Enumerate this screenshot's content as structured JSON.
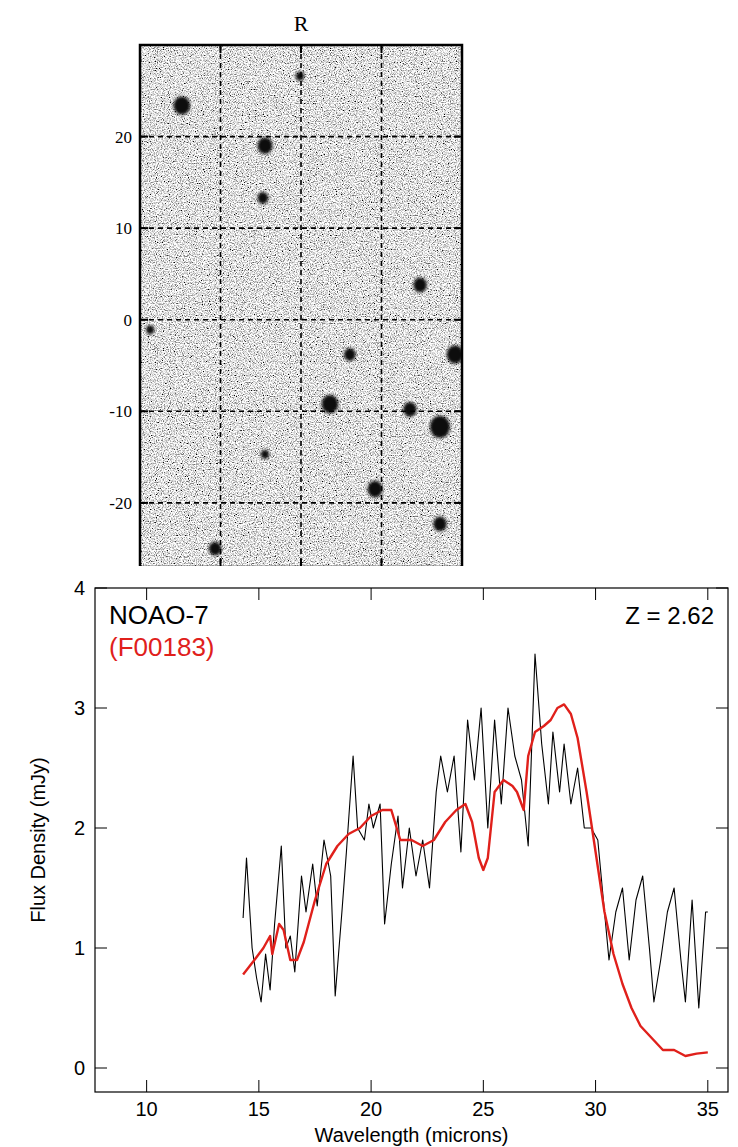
{
  "chart_data": [
    {
      "type": "image",
      "title": "R",
      "xlim": [
        -30,
        30
      ],
      "ylim": [
        -27,
        30
      ],
      "xticks": [
        -15,
        0,
        15
      ],
      "yticks": [
        -20,
        -10,
        0,
        10,
        20
      ],
      "grid": true,
      "tick_labels": "y",
      "x": [
        -22.2,
        -6.7,
        -7.1,
        22.2,
        28.7,
        9.1,
        5.4,
        20.3,
        25.9,
        13.8,
        -6.7,
        -16,
        25.9,
        -28.1,
        -0.2
      ],
      "values": [
        23.4,
        19.0,
        13.3,
        3.8,
        -3.8,
        -3.8,
        -9.2,
        -9.8,
        -11.7,
        -18.5,
        -14.7,
        -25,
        -22.3,
        -1.1,
        26.6
      ],
      "size": [
        2,
        1.8,
        1.3,
        1.6,
        2.0,
        1.4,
        2.0,
        1.6,
        2.4,
        1.8,
        1.0,
        1.5,
        1.6,
        1.0,
        1.0
      ]
    },
    {
      "type": "line",
      "xlabel": "Wavelength (microns)",
      "ylabel": "Flux Density (mJy)",
      "xlim": [
        7.7,
        35.9
      ],
      "ylim": [
        -0.2,
        4
      ],
      "xticks": [
        10,
        15,
        20,
        25,
        30,
        35
      ],
      "yticks": [
        0,
        1,
        2,
        3,
        4
      ],
      "legend": "upper left",
      "annotations": [
        "Z = 2.62"
      ],
      "series": [
        {
          "name": "NOAO-7",
          "color": "#000000",
          "line_style": "solid",
          "x": [
            14.3,
            14.45,
            14.7,
            14.9,
            15.1,
            15.3,
            15.5,
            15.7,
            16.0,
            16.2,
            16.4,
            16.6,
            16.9,
            17.1,
            17.4,
            17.6,
            17.9,
            18.2,
            18.4,
            18.7,
            18.9,
            19.2,
            19.4,
            19.7,
            19.9,
            20.1,
            20.4,
            20.6,
            20.9,
            21.2,
            21.4,
            21.7,
            22.0,
            22.3,
            22.6,
            22.9,
            23.1,
            23.4,
            23.7,
            24.0,
            24.3,
            24.6,
            24.9,
            25.2,
            25.5,
            25.8,
            26.1,
            26.4,
            26.7,
            27.0,
            27.3,
            27.6,
            27.9,
            28.1,
            28.4,
            28.6,
            28.9,
            29.2,
            29.5,
            29.8,
            30.1,
            30.4,
            30.6,
            30.9,
            31.2,
            31.5,
            31.8,
            32.1,
            32.4,
            32.6,
            32.9,
            33.2,
            33.5,
            33.8,
            34.0,
            34.3,
            34.6,
            34.9,
            35.0
          ],
          "values": [
            1.25,
            1.75,
            1.0,
            0.75,
            0.55,
            0.95,
            0.65,
            1.2,
            1.85,
            1.0,
            1.1,
            0.8,
            1.6,
            1.3,
            1.7,
            1.35,
            1.9,
            1.6,
            0.6,
            1.3,
            1.8,
            2.6,
            2.0,
            1.9,
            2.2,
            2.0,
            2.2,
            1.2,
            1.7,
            2.1,
            1.5,
            2.0,
            1.6,
            1.9,
            1.5,
            2.3,
            2.6,
            2.3,
            2.6,
            1.8,
            2.9,
            2.4,
            3.0,
            2.0,
            2.9,
            2.2,
            3.0,
            2.6,
            2.4,
            1.85,
            3.45,
            2.7,
            2.2,
            2.8,
            2.3,
            2.7,
            2.2,
            2.5,
            2.0,
            2.0,
            1.9,
            1.3,
            0.9,
            1.3,
            1.5,
            0.9,
            1.4,
            1.6,
            1.0,
            0.55,
            0.9,
            1.3,
            1.5,
            0.9,
            0.55,
            1.4,
            0.5,
            1.3,
            1.3
          ]
        },
        {
          "name": "(F00183)",
          "color": "#e0201b",
          "line_style": "solid",
          "x": [
            14.3,
            14.8,
            15.2,
            15.5,
            15.6,
            15.9,
            16.1,
            16.4,
            16.7,
            17.0,
            17.5,
            18.0,
            18.5,
            19.0,
            19.5,
            20.0,
            20.5,
            20.9,
            21.3,
            21.8,
            22.3,
            22.8,
            23.3,
            23.8,
            24.2,
            24.5,
            24.8,
            25.0,
            25.2,
            25.5,
            25.9,
            26.3,
            26.5,
            26.8,
            27.0,
            27.3,
            27.7,
            28.0,
            28.3,
            28.6,
            28.9,
            29.2,
            29.6,
            30.0,
            30.4,
            30.8,
            31.2,
            31.6,
            32.0,
            32.5,
            33.0,
            33.5,
            34.0,
            34.5,
            35.0
          ],
          "values": [
            0.78,
            0.9,
            1.0,
            1.1,
            0.95,
            1.2,
            1.15,
            0.9,
            0.9,
            1.05,
            1.4,
            1.7,
            1.85,
            1.95,
            2.0,
            2.1,
            2.15,
            2.15,
            1.9,
            1.9,
            1.85,
            1.9,
            2.05,
            2.15,
            2.2,
            2.05,
            1.75,
            1.65,
            1.75,
            2.3,
            2.4,
            2.35,
            2.3,
            2.15,
            2.6,
            2.8,
            2.85,
            2.9,
            3.0,
            3.03,
            2.95,
            2.75,
            2.3,
            1.8,
            1.3,
            0.95,
            0.7,
            0.5,
            0.35,
            0.25,
            0.15,
            0.15,
            0.1,
            0.12,
            0.13
          ]
        }
      ]
    }
  ]
}
